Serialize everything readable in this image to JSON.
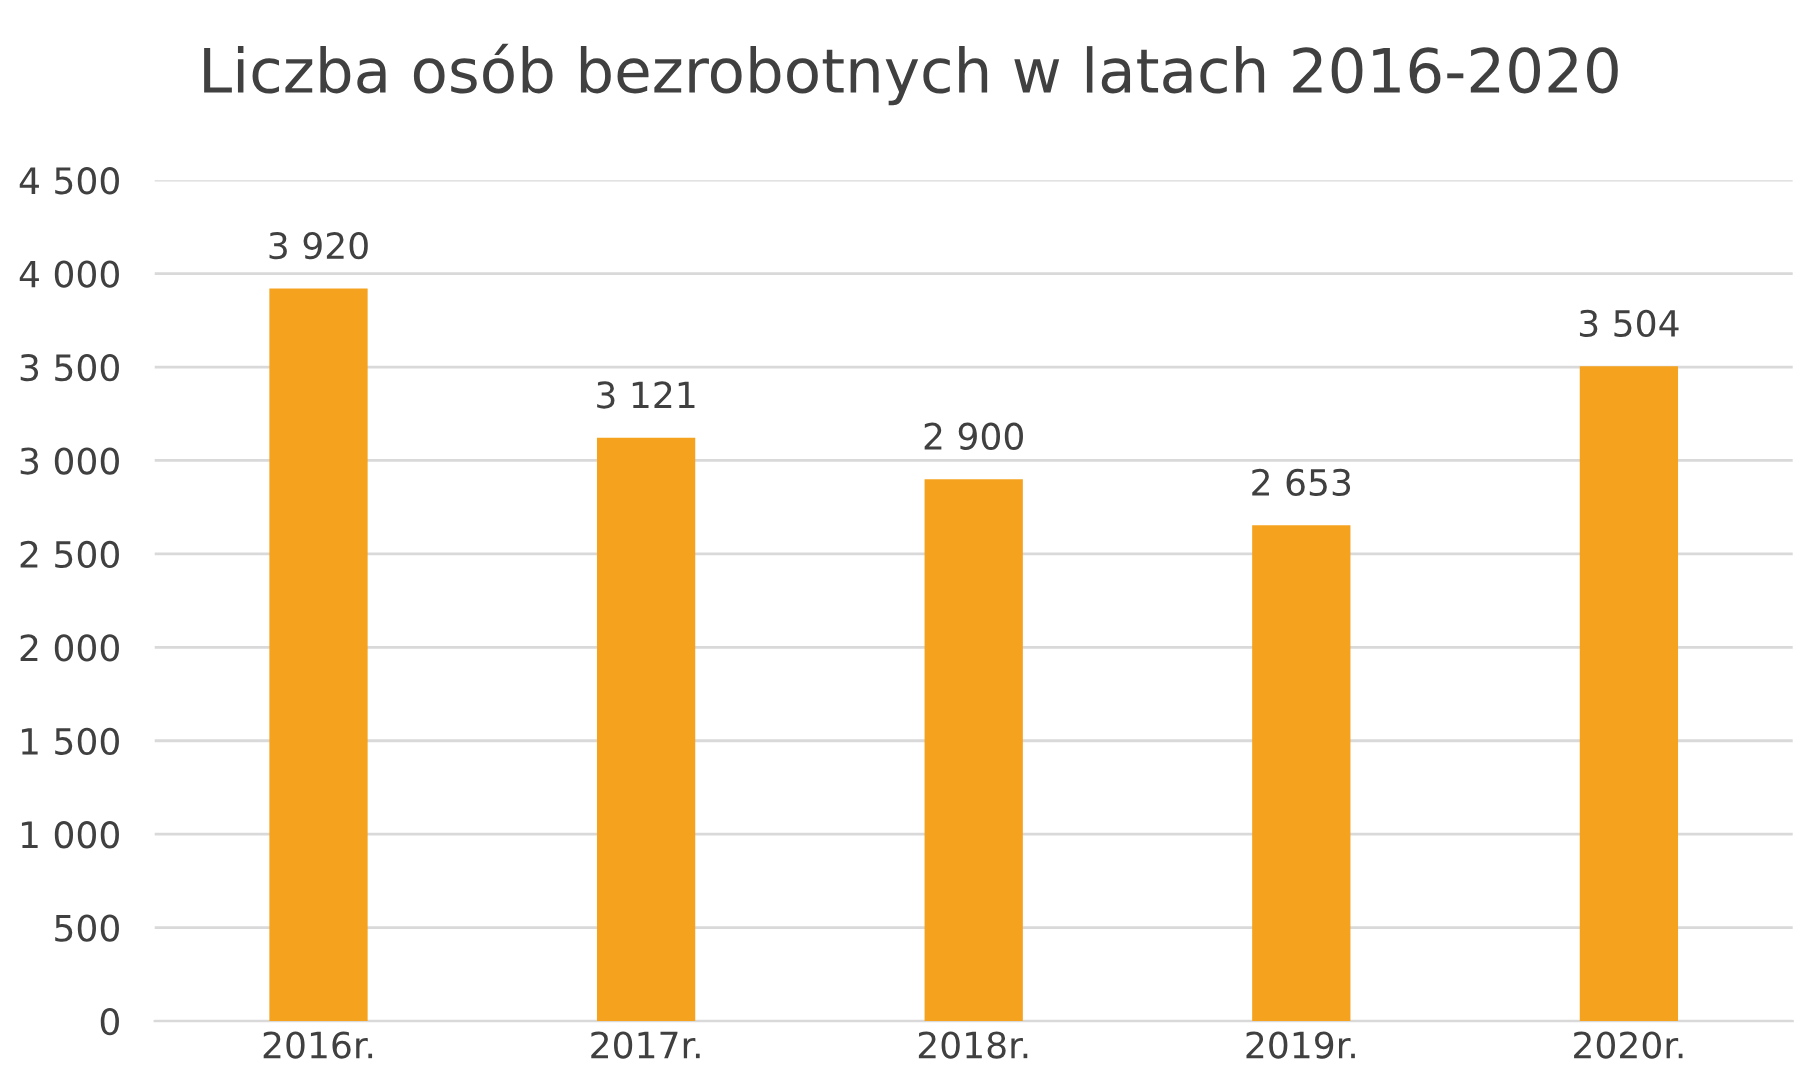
{
  "chart_data": {
    "type": "bar",
    "title": "Liczba osób bezrobotnych w latach 2016-2020",
    "categories": [
      "2016r.",
      "2017r.",
      "2018r.",
      "2019r.",
      "2020r."
    ],
    "values": [
      3920,
      3121,
      2900,
      2653,
      3504
    ],
    "value_labels": [
      "3 920",
      "3 121",
      "2 900",
      "2 653",
      "3 504"
    ],
    "color": "#f5a31f",
    "ylim": [
      0,
      4500
    ],
    "yticks": [
      0,
      {
        "value": 500,
        "label": "500"
      },
      {
        "value": 1000,
        "label": "1 000"
      },
      {
        "value": 1500,
        "label": "1 500"
      },
      {
        "value": 2000,
        "label": "2 000"
      },
      {
        "value": 2500,
        "label": "2 500"
      },
      {
        "value": 3000,
        "label": "3 000"
      },
      {
        "value": 3500,
        "label": "3 500"
      },
      {
        "value": 4000,
        "label": "4 000"
      },
      {
        "value": 4500,
        "label": "4 500"
      }
    ],
    "grid": "y",
    "legend": false
  }
}
